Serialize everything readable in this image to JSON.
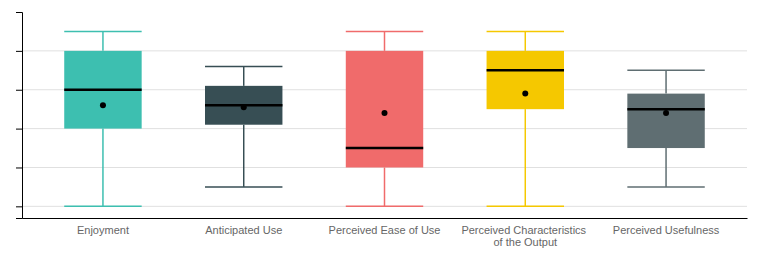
{
  "chart_data": {
    "type": "box",
    "categories": [
      "Enjoyment",
      "Anticipated Use",
      "Perceived Ease of Use",
      "Perceived Characteristics of the Output",
      "Perceived Usefulness"
    ],
    "colors": [
      "#3DBFB0",
      "#374E54",
      "#F06B6B",
      "#F5C800",
      "#5F6E72"
    ],
    "whislo": [
      1.0,
      1.5,
      1.0,
      1.0,
      1.5
    ],
    "q1": [
      3.0,
      3.1,
      2.0,
      3.5,
      2.5
    ],
    "med": [
      4.0,
      3.6,
      2.5,
      4.5,
      3.5
    ],
    "mean": [
      3.6,
      3.55,
      3.4,
      3.9,
      3.4
    ],
    "q3": [
      5.0,
      4.1,
      5.0,
      5.0,
      3.9
    ],
    "whishi": [
      5.5,
      4.6,
      5.5,
      5.5,
      4.5
    ],
    "ylim": [
      0.7,
      6.0
    ],
    "yticks": [
      1,
      2,
      3,
      4,
      5
    ],
    "grid": true,
    "tick_labels": "x"
  }
}
